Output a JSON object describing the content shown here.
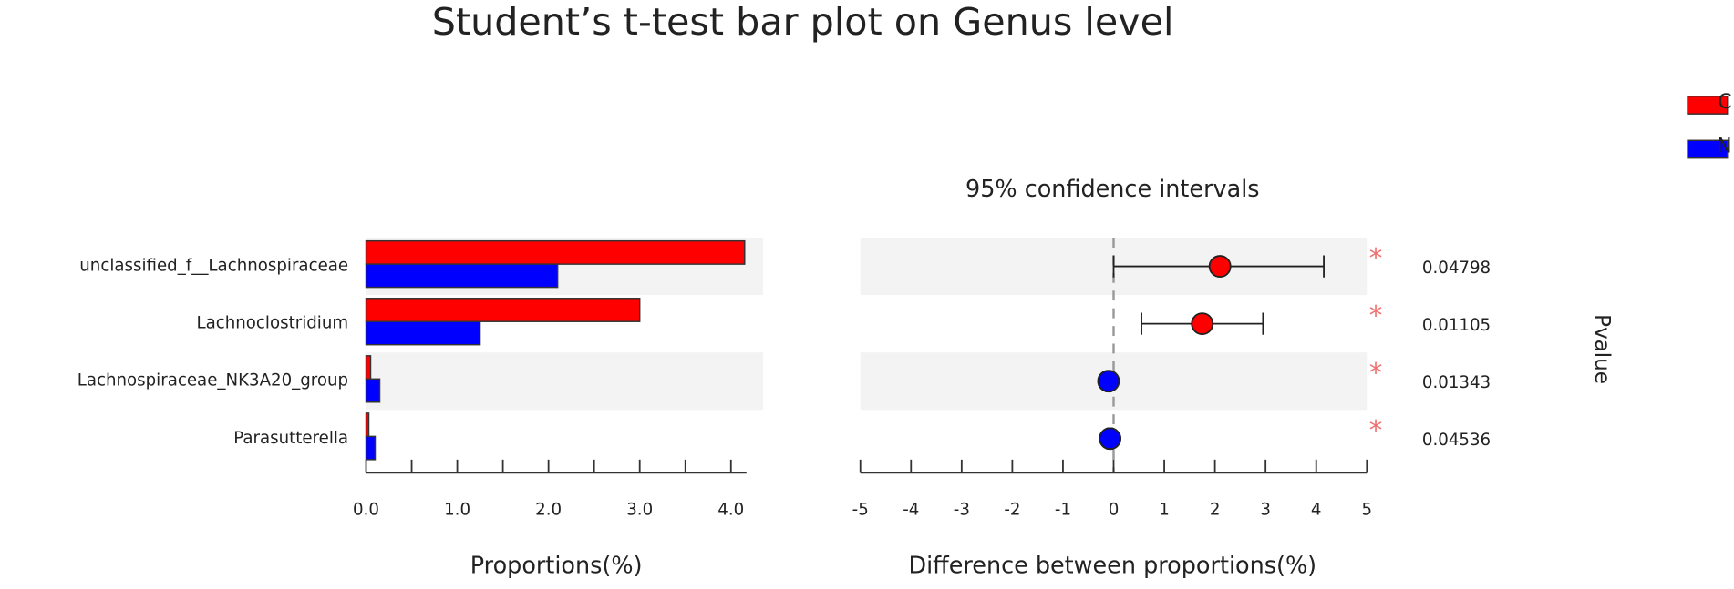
{
  "chart_data": [
    {
      "type": "hbar",
      "title": "Student’s t-test bar plot on Genus level",
      "categories": [
        "unclassified_f__Lachnospiraceae",
        "Lachnoclostridium",
        "Lachnospiraceae_NK3A20_group",
        "Parasutterella"
      ],
      "series": [
        {
          "name": "C",
          "color": "#ff0000",
          "values": [
            4.15,
            3.0,
            0.05,
            0.03
          ]
        },
        {
          "name": "N",
          "color": "#0000ff",
          "values": [
            2.1,
            1.25,
            0.15,
            0.1
          ]
        }
      ],
      "xlabel": "Proportions(%)",
      "xlim": [
        0,
        4.17
      ],
      "xticks": [
        {
          "value": 0,
          "label": "0.0"
        },
        {
          "value": 1,
          "label": "1.0"
        },
        {
          "value": 2,
          "label": "2.0"
        },
        {
          "value": 3,
          "label": "3.0"
        },
        {
          "value": 4,
          "label": "4.0"
        }
      ],
      "xminor_ticks": [
        0.5,
        1.5,
        2.5,
        3.5
      ],
      "band_color": "#f3f3f3",
      "legend": "top-right"
    },
    {
      "type": "errorbar",
      "title": "95% confidence intervals",
      "values": [
        2.1,
        1.75,
        -0.1,
        -0.07
      ],
      "ci_low": [
        0,
        0.55,
        -0.15,
        -0.12
      ],
      "ci_high": [
        4.15,
        2.95,
        -0.05,
        -0.02
      ],
      "point_colors": [
        "#ff0000",
        "#ff0000",
        "#0000ff",
        "#0000ff"
      ],
      "significance": [
        "*",
        "*",
        "*",
        "*"
      ],
      "pvalues": [
        0.04798,
        0.01105,
        0.01343,
        0.04536
      ],
      "pvalue_label": "Pvalue",
      "xlabel": "Difference between proportions(%)",
      "xlim": [
        -5,
        5
      ],
      "xticks": [
        -5,
        -4,
        -3,
        -2,
        -1,
        0,
        1,
        2,
        3,
        4,
        5
      ],
      "reference_line": 0,
      "band_color": "#f3f3f3"
    }
  ]
}
